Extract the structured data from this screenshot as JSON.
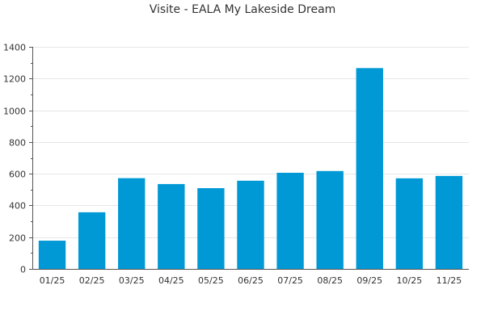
{
  "chart_data": {
    "type": "bar",
    "title": "Visite - EALA My Lakeside Dream",
    "categories": [
      "01/25",
      "02/25",
      "03/25",
      "04/25",
      "05/25",
      "06/25",
      "07/25",
      "08/25",
      "09/25",
      "10/25",
      "11/25"
    ],
    "values": [
      178,
      357,
      572,
      535,
      509,
      556,
      606,
      617,
      1266,
      571,
      586
    ],
    "ylim": [
      0,
      1400
    ],
    "yticks": [
      0,
      200,
      400,
      600,
      800,
      1000,
      1200,
      1400
    ],
    "grid": true,
    "bar_color": "#0099d6",
    "xlabel": "",
    "ylabel": ""
  }
}
